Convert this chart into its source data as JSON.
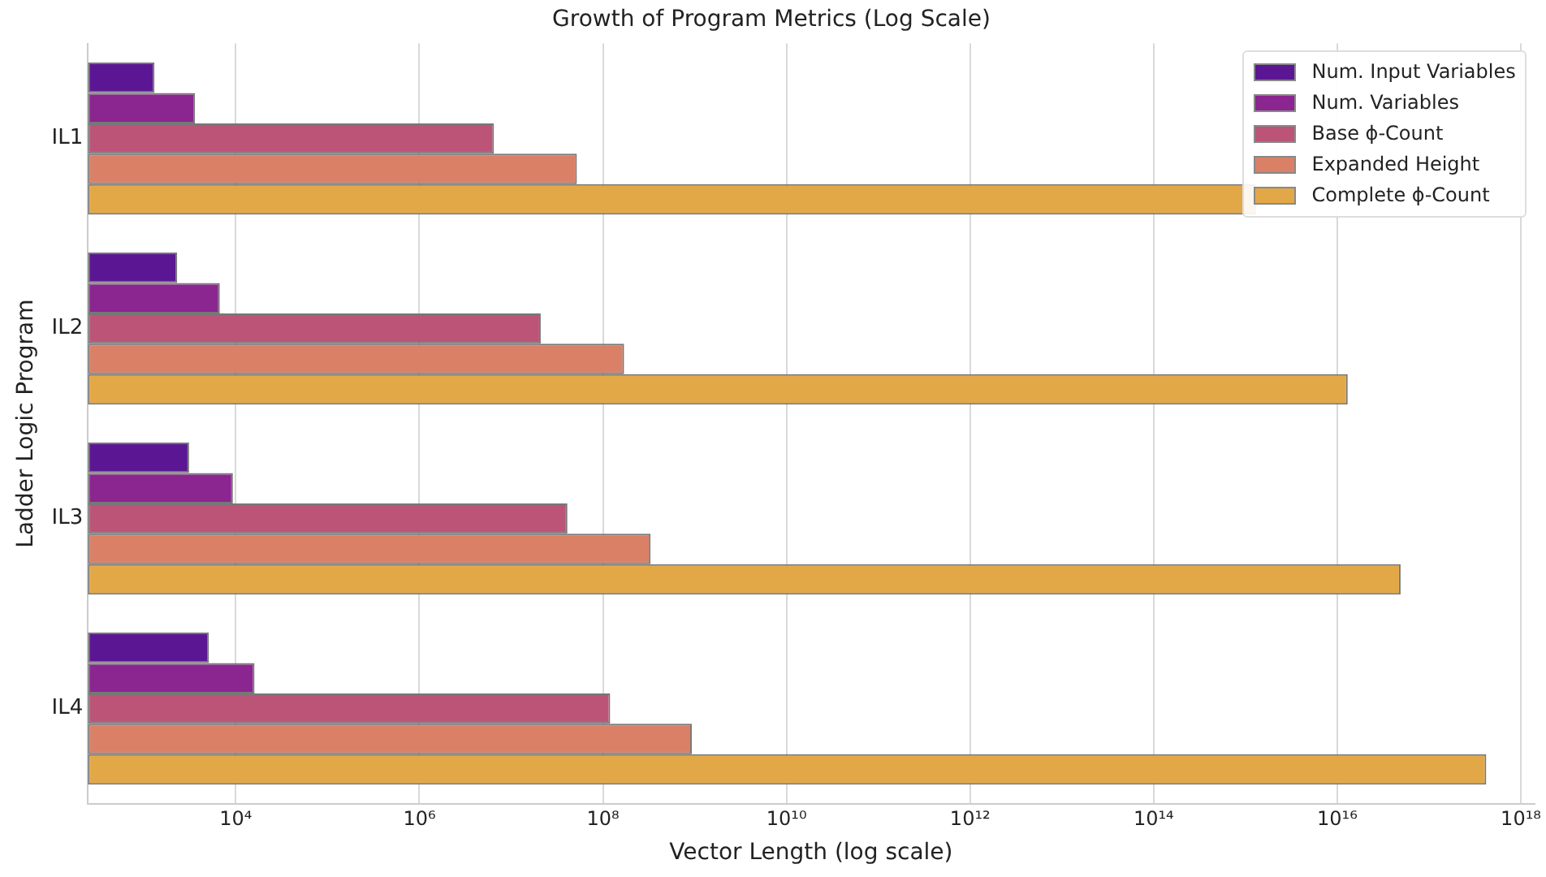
{
  "chart_data": {
    "type": "bar",
    "orientation": "horizontal",
    "title": "Growth of Program Metrics (Log Scale)",
    "xlabel": "Vector Length (log scale)",
    "ylabel": "Ladder Logic Program",
    "categories": [
      "IL1",
      "IL2",
      "IL3",
      "IL4"
    ],
    "series": [
      {
        "name": "Num. Input Variables",
        "color": "#5b1793",
        "values": [
          1300,
          2300,
          3100,
          5100
        ]
      },
      {
        "name": "Num. Variables",
        "color": "#8b2590",
        "values": [
          3600,
          6700,
          9300,
          16000
        ]
      },
      {
        "name": "Base ϕ-Count",
        "color": "#bc5478",
        "values": [
          6500000,
          21000000,
          41000000,
          120000000
        ]
      },
      {
        "name": "Expanded Height",
        "color": "#d98066",
        "values": [
          52000000,
          170000000,
          330000000,
          930000000
        ]
      },
      {
        "name": "Complete ϕ-Count",
        "color": "#e2a848",
        "values": [
          1300000000000000.0,
          1.3e+16,
          4.9e+16,
          4.2e+17
        ]
      }
    ],
    "log": "x",
    "xlim": [
      245,
      1.4e+18
    ],
    "xticks": [
      {
        "value": 10000.0,
        "label": "10⁴"
      },
      {
        "value": 1000000.0,
        "label": "10⁶"
      },
      {
        "value": 100000000.0,
        "label": "10⁸"
      },
      {
        "value": 10000000000.0,
        "label": "10¹⁰"
      },
      {
        "value": 1000000000000.0,
        "label": "10¹²"
      },
      {
        "value": 100000000000000.0,
        "label": "10¹⁴"
      },
      {
        "value": 1e+16,
        "label": "10¹⁶"
      },
      {
        "value": 1e+18,
        "label": "10¹⁸"
      }
    ],
    "grid": "x",
    "legend": "top right"
  }
}
